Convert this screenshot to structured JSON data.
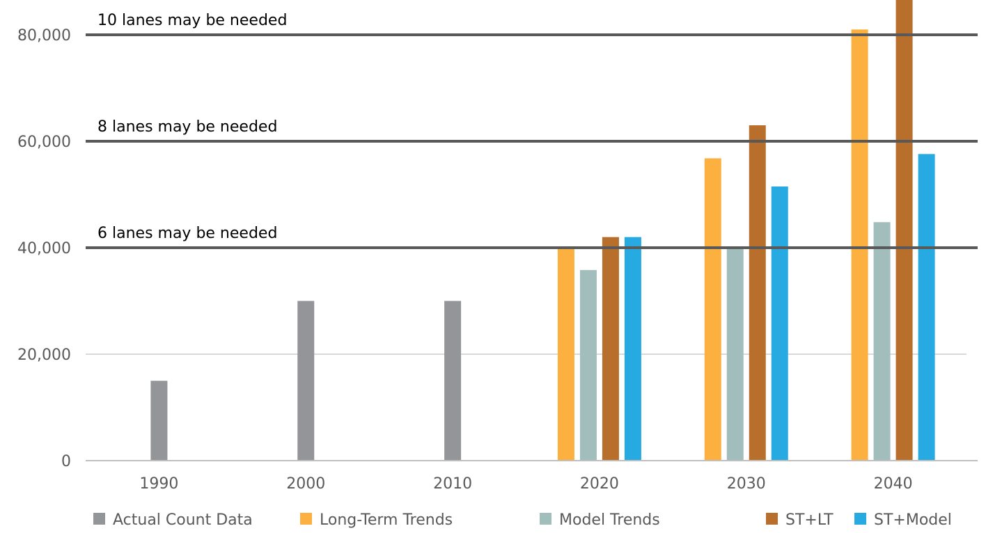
{
  "chart_data": {
    "type": "bar",
    "categories": [
      "1990",
      "2000",
      "2010",
      "2020",
      "2030",
      "2040"
    ],
    "ylim": [
      0,
      85000
    ],
    "yticks": [
      0,
      20000,
      40000,
      60000,
      80000
    ],
    "ytick_labels": [
      "0",
      "20,000",
      "40,000",
      "60,000",
      "80,000"
    ],
    "grid": true,
    "legend_position": "bottom",
    "series": [
      {
        "name": "Actual Count Data",
        "color": "#939598",
        "values": [
          15000,
          30000,
          30000,
          null,
          null,
          null
        ]
      },
      {
        "name": "Long-Term Trends",
        "color": "#FBB040",
        "values": [
          null,
          null,
          null,
          40000,
          56800,
          81000
        ]
      },
      {
        "name": "Model Trends",
        "color": "#A1BDBC",
        "values": [
          null,
          null,
          null,
          35800,
          40000,
          44800
        ]
      },
      {
        "name": "ST+LT",
        "color": "#B86F2B",
        "values": [
          null,
          null,
          null,
          42000,
          63000,
          88000
        ]
      },
      {
        "name": "ST+Model",
        "color": "#27AAE1",
        "values": [
          null,
          null,
          null,
          42000,
          51500,
          57600
        ]
      }
    ],
    "thresholds": [
      {
        "value": 40000,
        "label": "6 lanes may be needed"
      },
      {
        "value": 60000,
        "label": "8 lanes may be needed"
      },
      {
        "value": 80000,
        "label": "10 lanes may be needed"
      }
    ],
    "colors": {
      "gridline": "#D9D9D9",
      "threshold_line": "#595959",
      "axis": "#BFBFBF"
    }
  }
}
